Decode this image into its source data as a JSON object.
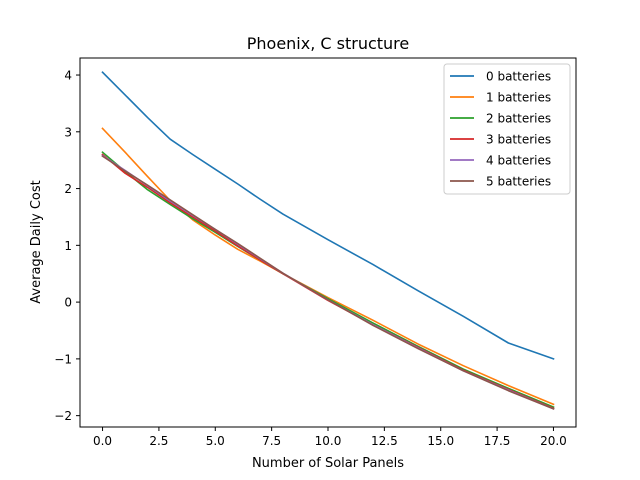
{
  "chart_data": {
    "type": "line",
    "title": "Phoenix, C structure",
    "xlabel": "Number of Solar Panels",
    "ylabel": "Average Daily Cost",
    "xlim": [
      -1.0,
      21.0
    ],
    "ylim": [
      -2.2,
      4.3
    ],
    "xticks": [
      0.0,
      2.5,
      5.0,
      7.5,
      10.0,
      12.5,
      15.0,
      17.5,
      20.0
    ],
    "xtick_labels": [
      "0.0",
      "2.5",
      "5.0",
      "7.5",
      "10.0",
      "12.5",
      "15.0",
      "17.5",
      "20.0"
    ],
    "yticks": [
      -2,
      -1,
      0,
      1,
      2,
      3,
      4
    ],
    "ytick_labels": [
      "−2",
      "−1",
      "0",
      "1",
      "2",
      "3",
      "4"
    ],
    "grid": false,
    "legend_position": "top-right",
    "series": [
      {
        "name": "0 batteries",
        "color": "#1f77b4",
        "x": [
          0,
          1,
          2,
          3,
          4,
          5,
          6,
          7,
          8,
          10,
          12,
          14,
          16,
          18,
          20
        ],
        "y": [
          4.05,
          3.65,
          3.25,
          2.87,
          2.6,
          2.34,
          2.08,
          1.81,
          1.55,
          1.1,
          0.66,
          0.2,
          -0.25,
          -0.72,
          -1.0
        ]
      },
      {
        "name": "1 batteries",
        "color": "#ff7f0e",
        "x": [
          0,
          1,
          2,
          3,
          4,
          5,
          6,
          7,
          8,
          10,
          12,
          14,
          16,
          18,
          20
        ],
        "y": [
          3.06,
          2.64,
          2.21,
          1.79,
          1.45,
          1.18,
          0.93,
          0.72,
          0.5,
          0.08,
          -0.32,
          -0.74,
          -1.12,
          -1.47,
          -1.8
        ]
      },
      {
        "name": "2 batteries",
        "color": "#2ca02c",
        "x": [
          0,
          1,
          2,
          3,
          4,
          5,
          6,
          7,
          8,
          10,
          12,
          14,
          16,
          18,
          20
        ],
        "y": [
          2.64,
          2.3,
          1.98,
          1.72,
          1.47,
          1.23,
          0.98,
          0.74,
          0.5,
          0.06,
          -0.37,
          -0.78,
          -1.18,
          -1.52,
          -1.85
        ]
      },
      {
        "name": "3 batteries",
        "color": "#d62728",
        "x": [
          0,
          1,
          2,
          3,
          4,
          5,
          6,
          7,
          8,
          10,
          12,
          14,
          16,
          18,
          20
        ],
        "y": [
          2.6,
          2.27,
          2.02,
          1.75,
          1.5,
          1.25,
          0.99,
          0.74,
          0.5,
          0.03,
          -0.4,
          -0.8,
          -1.2,
          -1.54,
          -1.87
        ]
      },
      {
        "name": "4 batteries",
        "color": "#9467bd",
        "x": [
          0,
          1,
          2,
          3,
          4,
          5,
          6,
          7,
          8,
          10,
          12,
          14,
          16,
          18,
          20
        ],
        "y": [
          2.58,
          2.32,
          2.05,
          1.78,
          1.53,
          1.28,
          1.02,
          0.76,
          0.51,
          0.04,
          -0.4,
          -0.81,
          -1.21,
          -1.55,
          -1.88
        ]
      },
      {
        "name": "5 batteries",
        "color": "#8c564b",
        "x": [
          0,
          1,
          2,
          3,
          4,
          5,
          6,
          7,
          8,
          10,
          12,
          14,
          16,
          18,
          20
        ],
        "y": [
          2.57,
          2.31,
          2.06,
          1.8,
          1.54,
          1.28,
          1.03,
          0.77,
          0.51,
          0.04,
          -0.41,
          -0.82,
          -1.21,
          -1.56,
          -1.88
        ]
      }
    ]
  }
}
